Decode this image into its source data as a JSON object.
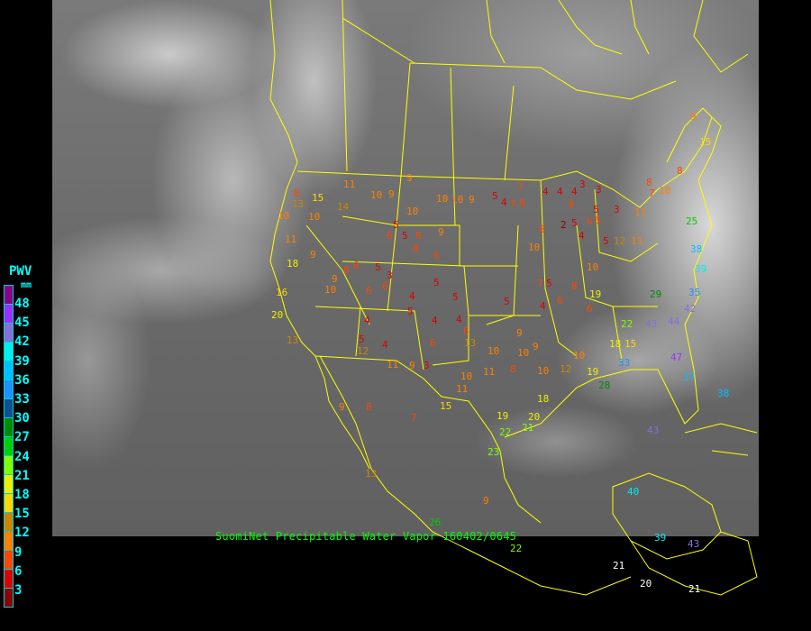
{
  "caption": "SuomiNet Precipitable Water Vapor 160402/0645",
  "legend": {
    "title": "PWV",
    "unit": "mm",
    "ticks": [
      "48",
      "45",
      "42",
      "39",
      "36",
      "33",
      "30",
      "27",
      "24",
      "21",
      "18",
      "15",
      "12",
      "9",
      "6",
      "3"
    ],
    "colors": [
      "#8b008b",
      "#9b30ff",
      "#8470d8",
      "#00eeee",
      "#00bfff",
      "#1e90ff",
      "#10508f",
      "#008b00",
      "#00cd00",
      "#7fff00",
      "#eeee00",
      "#ffd700",
      "#cd8500",
      "#ff7f00",
      "#ff4500",
      "#dd0000",
      "#8b0000"
    ]
  },
  "colors": {
    "map_lines": "#ffff00",
    "caption": "#00ff00",
    "legend_text": "#00ffff"
  },
  "stations": [
    9,
    15,
    10,
    8,
    25,
    38,
    39,
    35,
    42,
    43,
    44,
    47,
    37,
    38,
    33,
    28,
    29,
    22,
    18,
    15,
    19,
    10,
    12,
    10,
    9,
    8,
    11,
    10,
    11,
    18,
    20,
    21,
    19,
    22,
    23,
    26,
    9,
    15,
    7,
    13,
    8,
    9,
    12,
    11,
    9,
    3,
    6,
    4,
    5,
    4,
    6,
    4,
    5,
    4,
    6,
    3,
    5,
    6,
    8,
    9,
    10,
    9,
    11,
    18,
    16,
    20,
    13,
    10,
    8,
    13,
    15,
    10,
    14,
    11,
    10,
    9,
    9,
    10,
    5,
    6,
    5,
    8,
    9,
    10,
    10,
    9,
    5,
    4,
    7,
    8,
    7,
    4,
    4,
    4,
    3,
    3,
    6,
    5,
    6,
    6,
    3,
    2,
    5,
    4,
    5,
    10,
    8,
    5,
    5,
    7,
    4,
    6,
    8,
    6,
    10,
    12,
    11,
    11,
    7,
    8,
    19,
    5,
    5,
    6,
    8,
    4,
    6,
    13,
    10,
    10,
    9,
    40,
    39,
    43,
    21,
    20,
    21,
    43,
    22,
    6
  ]
}
